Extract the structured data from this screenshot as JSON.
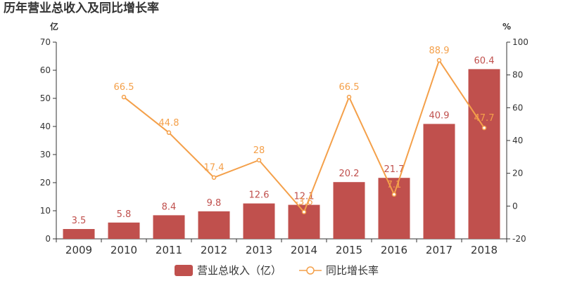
{
  "chart_data": {
    "type": "bar",
    "title": "历年营业总收入及同比增长率",
    "categories": [
      "2009",
      "2010",
      "2011",
      "2012",
      "2013",
      "2014",
      "2015",
      "2016",
      "2017",
      "2018"
    ],
    "left_unit": "亿",
    "right_unit": "%",
    "ylim_left": [
      0,
      70
    ],
    "yticks_left": [
      0,
      10,
      20,
      30,
      40,
      50,
      60,
      70
    ],
    "ylim_right": [
      -20,
      100
    ],
    "yticks_right": [
      -20,
      0,
      20,
      40,
      60,
      80,
      100
    ],
    "grid": false,
    "legend_position": "bottom",
    "series": [
      {
        "name": "营业总收入（亿）",
        "type": "bar",
        "axis": "left",
        "color": "#c0504d",
        "values": [
          3.5,
          5.8,
          8.4,
          9.8,
          12.6,
          12.1,
          20.2,
          21.7,
          40.9,
          60.4
        ],
        "labels": [
          "3.5",
          "5.8",
          "8.4",
          "9.8",
          "12.6",
          "12.1",
          "20.2",
          "21.7",
          "40.9",
          "60.4"
        ]
      },
      {
        "name": "同比增长率",
        "type": "line",
        "axis": "right",
        "color": "#f4a04a",
        "values": [
          null,
          66.5,
          44.8,
          17.4,
          28,
          -3.6,
          66.5,
          7.1,
          88.9,
          47.7
        ],
        "labels": [
          "",
          "66.5",
          "44.8",
          "17.4",
          "28",
          "-3.6",
          "66.5",
          "7.1",
          "88.9",
          "47.7"
        ]
      }
    ]
  }
}
